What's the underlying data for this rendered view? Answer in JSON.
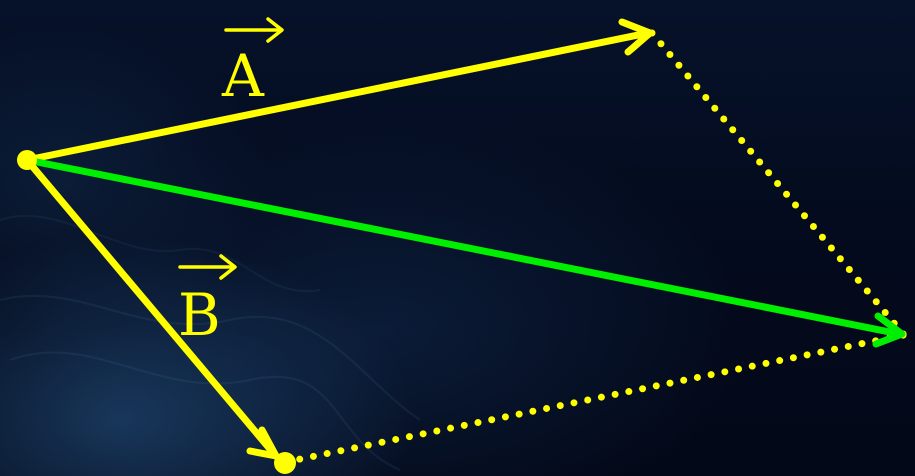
{
  "labels": {
    "vector_a": "A",
    "vector_b": "B"
  },
  "colors": {
    "component_vectors": "#ffff00",
    "resultant_vector": "#00ee00",
    "background": "#030818"
  }
}
